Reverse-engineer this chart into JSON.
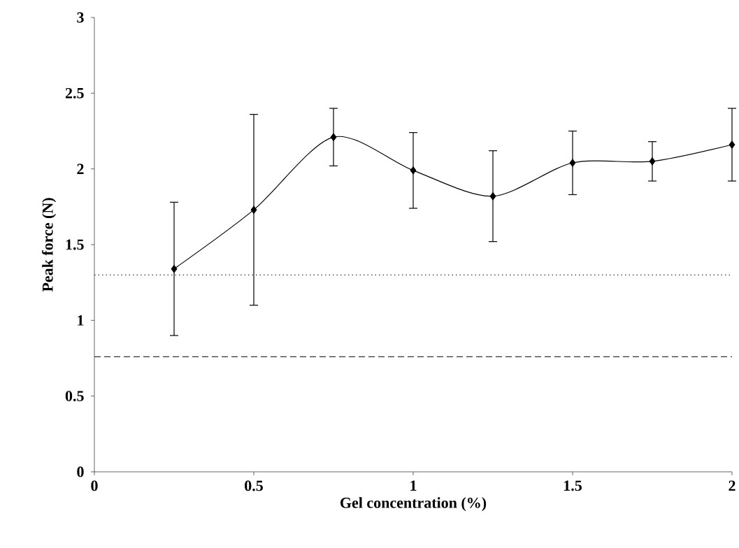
{
  "chart_data": {
    "type": "line",
    "xlabel": "Gel concentration (%)",
    "ylabel": "Peak force (N)",
    "x": [
      0.25,
      0.5,
      0.75,
      1,
      1.25,
      1.5,
      1.75,
      2
    ],
    "values": [
      1.34,
      1.73,
      2.21,
      1.99,
      1.82,
      2.04,
      2.05,
      2.16
    ],
    "errors": [
      0.44,
      0.63,
      0.19,
      0.25,
      0.3,
      0.21,
      0.13,
      0.24
    ],
    "color": "#000000",
    "marker": "diamond",
    "xlim": [
      0,
      2
    ],
    "xticks": [
      0,
      0.5,
      1,
      1.5,
      2
    ],
    "ylim": [
      0,
      3
    ],
    "yticks": [
      0,
      0.5,
      1,
      1.5,
      2,
      2.5,
      3
    ],
    "ref_lines": [
      {
        "axis": "y",
        "value": 1.3,
        "line_style": "dotted"
      },
      {
        "axis": "y",
        "value": 0.76,
        "line_style": "dashed"
      }
    ]
  }
}
